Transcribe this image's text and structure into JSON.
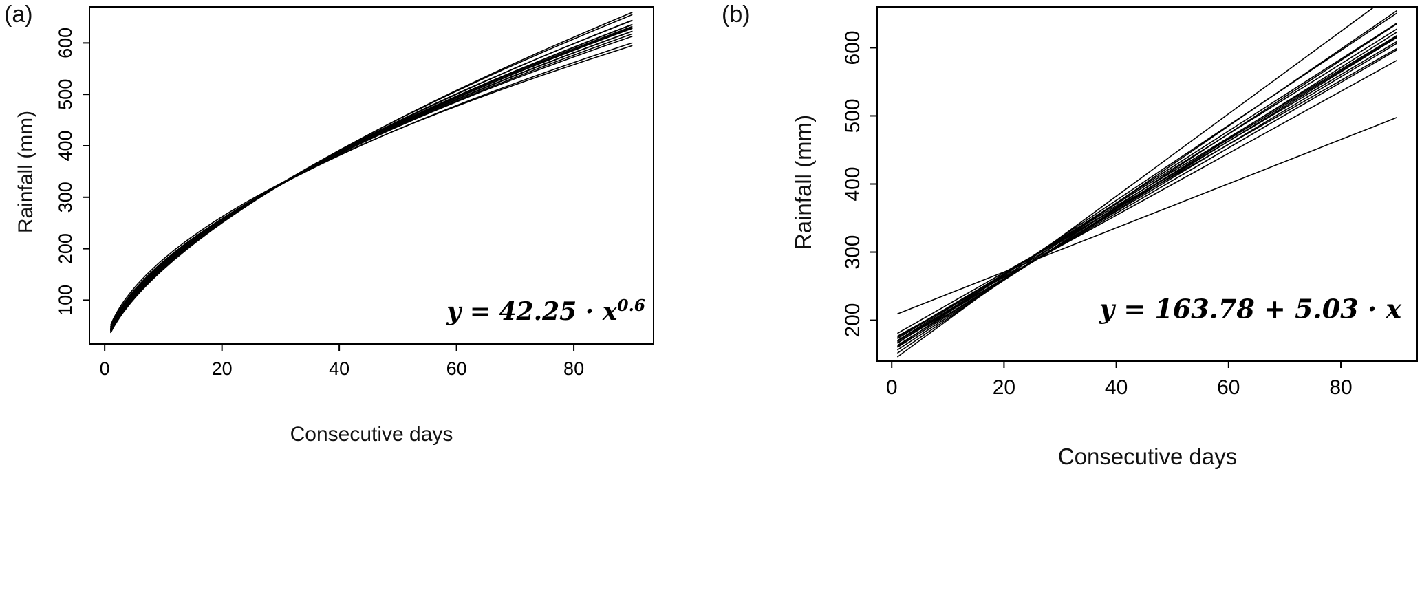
{
  "figure": {
    "background": "#ffffff",
    "ink": "#000000"
  },
  "chart_data": [
    {
      "type": "line",
      "panel_label": "(a)",
      "model": "power",
      "model_form": "y = a · x^b",
      "equation": {
        "prefix": "y = 42.25 · x",
        "superscript": "0.6"
      },
      "xlabel": "Consecutive days",
      "ylabel": "Rainfall (mm)",
      "x_ticks": [
        0,
        20,
        40,
        60,
        80
      ],
      "y_ticks": [
        100,
        200,
        300,
        400,
        500,
        600
      ],
      "xlim": [
        -2.6,
        93.6
      ],
      "ylim": [
        15,
        670
      ],
      "x_domain": [
        1,
        90
      ],
      "grid": false,
      "legend": "none",
      "series": [
        {
          "a": 51.2,
          "b": 0.545
        },
        {
          "a": 48.3,
          "b": 0.56
        },
        {
          "a": 46.1,
          "b": 0.575
        },
        {
          "a": 44.4,
          "b": 0.585
        },
        {
          "a": 43.8,
          "b": 0.59
        },
        {
          "a": 43.0,
          "b": 0.594
        },
        {
          "a": 42.8,
          "b": 0.597
        },
        {
          "a": 42.25,
          "b": 0.6
        },
        {
          "a": 42.1,
          "b": 0.602
        },
        {
          "a": 41.4,
          "b": 0.605
        },
        {
          "a": 41.2,
          "b": 0.608
        },
        {
          "a": 40.5,
          "b": 0.612
        },
        {
          "a": 39.9,
          "b": 0.618
        },
        {
          "a": 38.7,
          "b": 0.625
        },
        {
          "a": 37.6,
          "b": 0.635
        },
        {
          "a": 36.2,
          "b": 0.645
        }
      ]
    },
    {
      "type": "line",
      "panel_label": "(b)",
      "model": "linear",
      "model_form": "y = a + b · x",
      "equation": {
        "prefix": "y = 163.78 + 5.03 · x",
        "superscript": ""
      },
      "xlabel": "Consecutive days",
      "ylabel": "Rainfall (mm)",
      "x_ticks": [
        0,
        20,
        40,
        60,
        80
      ],
      "y_ticks": [
        200,
        300,
        400,
        500,
        600
      ],
      "xlim": [
        -2.6,
        93.6
      ],
      "ylim": [
        140,
        660
      ],
      "x_domain": [
        1,
        90
      ],
      "grid": false,
      "legend": "none",
      "series": [
        {
          "a": 206,
          "b": 3.24
        },
        {
          "a": 172,
          "b": 4.55
        },
        {
          "a": 176,
          "b": 4.7
        },
        {
          "a": 165,
          "b": 4.8
        },
        {
          "a": 170,
          "b": 4.88
        },
        {
          "a": 162,
          "b": 4.94
        },
        {
          "a": 168,
          "b": 5.0
        },
        {
          "a": 163.78,
          "b": 5.03
        },
        {
          "a": 158,
          "b": 5.08
        },
        {
          "a": 165,
          "b": 5.14
        },
        {
          "a": 155,
          "b": 5.2
        },
        {
          "a": 161,
          "b": 5.28
        },
        {
          "a": 151,
          "b": 5.38
        },
        {
          "a": 156,
          "b": 5.5
        },
        {
          "a": 146,
          "b": 5.65
        },
        {
          "a": 140,
          "b": 6.05
        }
      ]
    }
  ]
}
